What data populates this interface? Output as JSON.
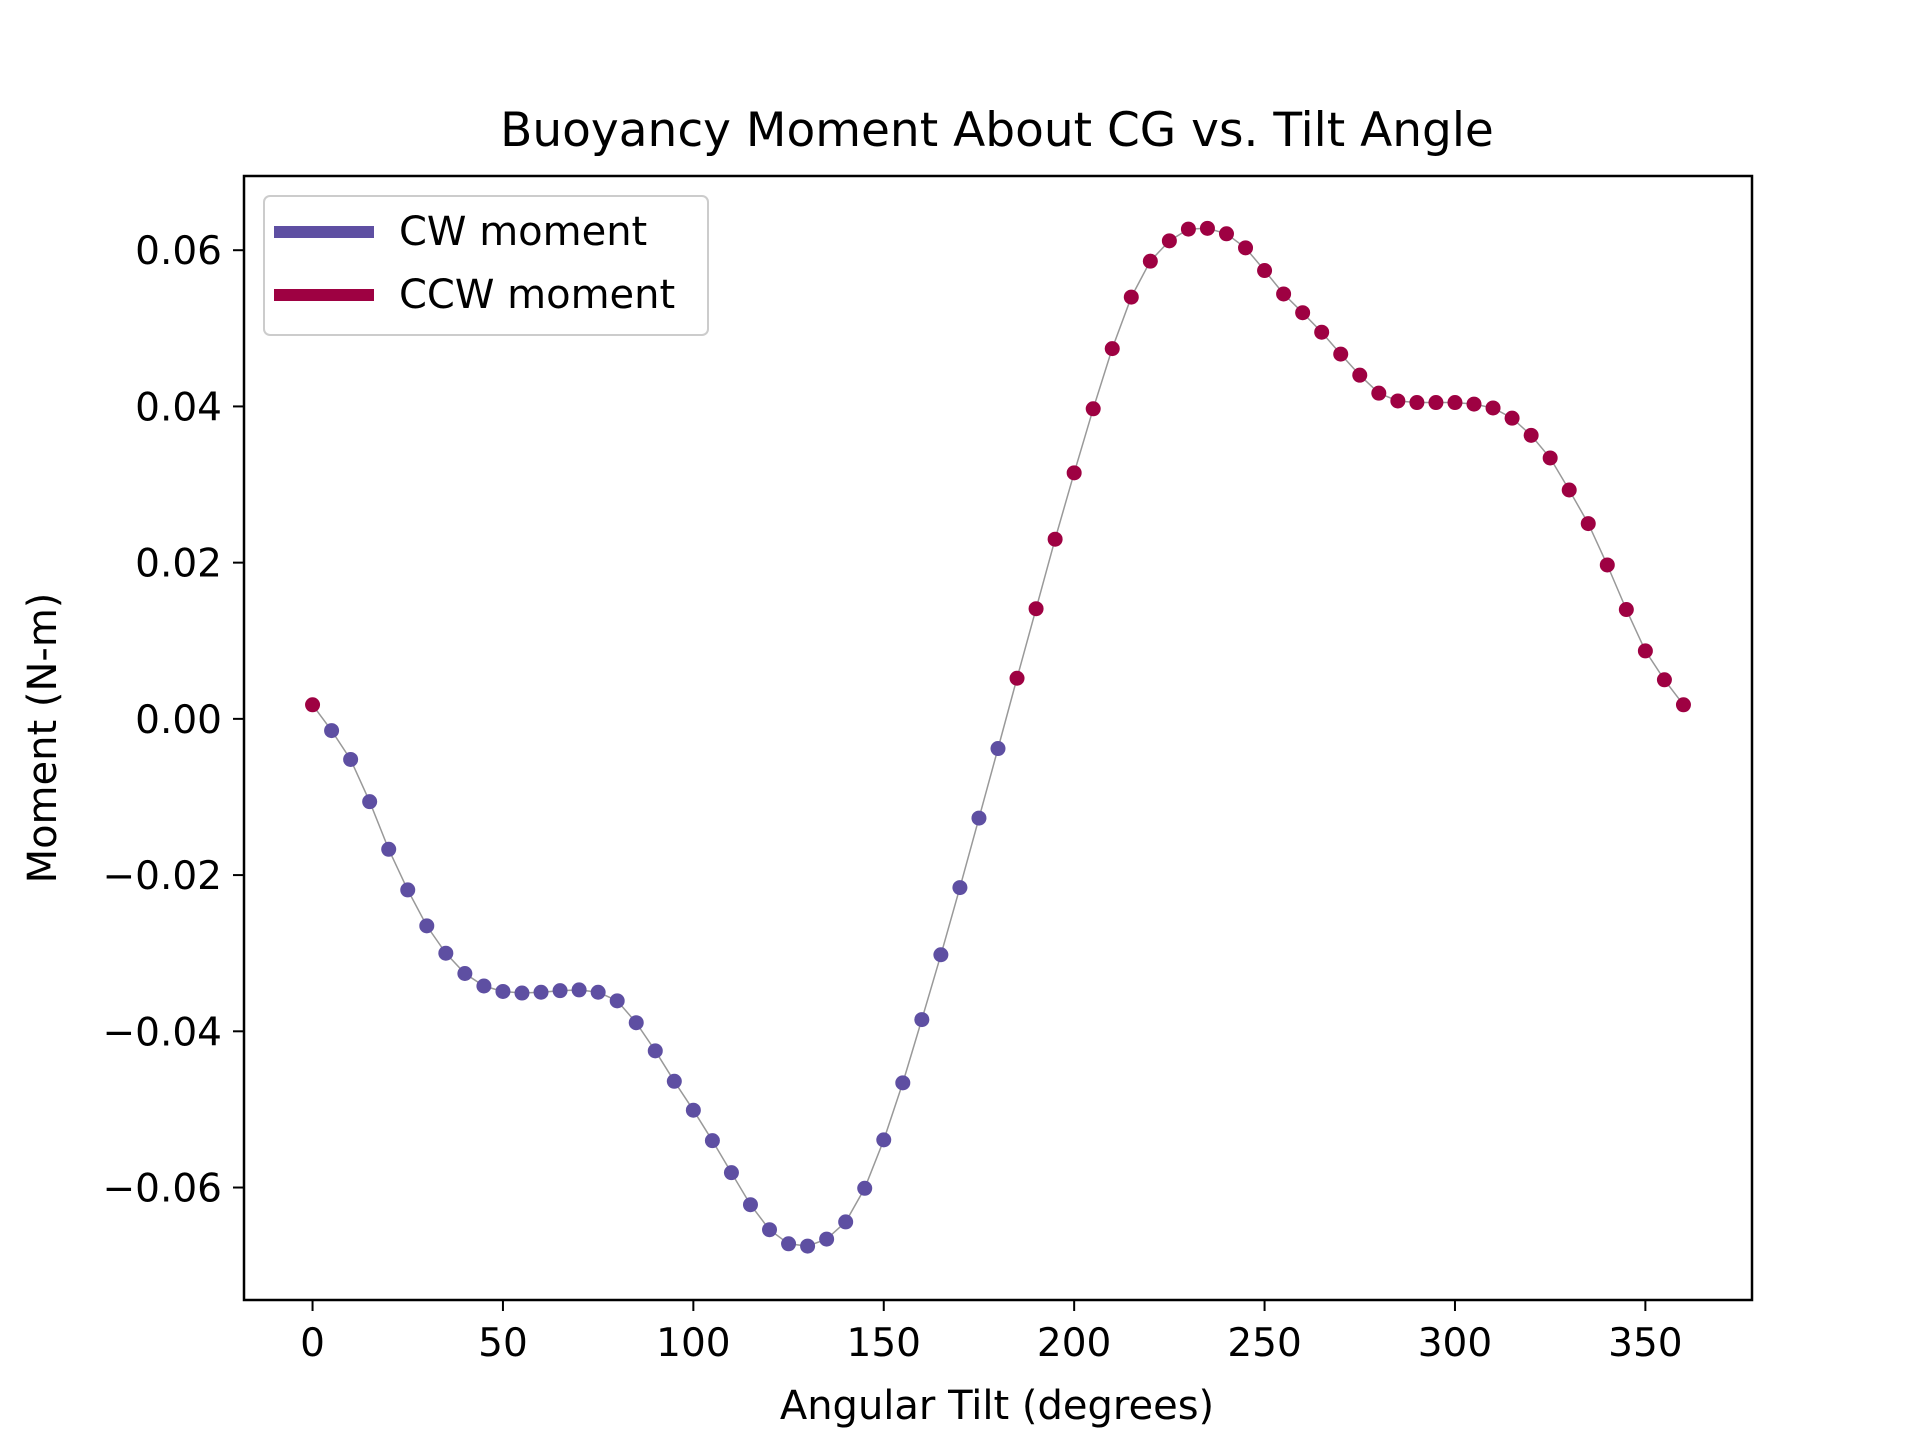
{
  "chart_data": {
    "type": "scatter",
    "title": "Buoyancy Moment About CG vs. Tilt Angle",
    "xlabel": "Angular Tilt (degrees)",
    "ylabel": "Moment (N-m)",
    "xlim": [
      -18,
      378
    ],
    "ylim": [
      -0.0744,
      0.0695
    ],
    "xticks": [
      0,
      50,
      100,
      150,
      200,
      250,
      300,
      350
    ],
    "xtick_labels": [
      "0",
      "50",
      "100",
      "150",
      "200",
      "250",
      "300",
      "350"
    ],
    "yticks": [
      -0.06,
      -0.04,
      -0.02,
      0.0,
      0.02,
      0.04,
      0.06
    ],
    "ytick_labels": [
      "−0.06",
      "−0.04",
      "−0.02",
      "0.00",
      "0.02",
      "0.04",
      "0.06"
    ],
    "grid": false,
    "legend_position": "top-left",
    "connecting_line_color": "#999999",
    "series": [
      {
        "name": "CW moment",
        "color": "#5e4fa2"
      },
      {
        "name": "CCW moment",
        "color": "#9e0142"
      }
    ],
    "x": [
      0,
      5,
      10,
      15,
      20,
      25,
      30,
      35,
      40,
      45,
      50,
      55,
      60,
      65,
      70,
      75,
      80,
      85,
      90,
      95,
      100,
      105,
      110,
      115,
      120,
      125,
      130,
      135,
      140,
      145,
      150,
      155,
      160,
      165,
      170,
      175,
      180,
      185,
      190,
      195,
      200,
      205,
      210,
      215,
      220,
      225,
      230,
      235,
      240,
      245,
      250,
      255,
      260,
      265,
      270,
      275,
      280,
      285,
      290,
      295,
      300,
      305,
      310,
      315,
      320,
      325,
      330,
      335,
      340,
      345,
      350,
      355,
      360
    ],
    "y": [
      0.0018,
      -0.0015,
      -0.0052,
      -0.0106,
      -0.0167,
      -0.0219,
      -0.0265,
      -0.03,
      -0.0326,
      -0.0342,
      -0.0349,
      -0.0351,
      -0.035,
      -0.0348,
      -0.0347,
      -0.035,
      -0.0361,
      -0.0389,
      -0.0425,
      -0.0464,
      -0.0501,
      -0.054,
      -0.0581,
      -0.0622,
      -0.0654,
      -0.0672,
      -0.0675,
      -0.0666,
      -0.0644,
      -0.0601,
      -0.0539,
      -0.0466,
      -0.0385,
      -0.0302,
      -0.0216,
      -0.0127,
      -0.0038,
      0.0052,
      0.0141,
      0.023,
      0.0315,
      0.0397,
      0.0474,
      0.054,
      0.0586,
      0.0612,
      0.0627,
      0.0628,
      0.0621,
      0.0603,
      0.0574,
      0.0544,
      0.052,
      0.0495,
      0.0467,
      0.044,
      0.0417,
      0.0407,
      0.0405,
      0.0405,
      0.0405,
      0.0403,
      0.0398,
      0.0385,
      0.0363,
      0.0334,
      0.0293,
      0.025,
      0.0197,
      0.014,
      0.0087,
      0.005,
      0.0018
    ],
    "series_index": [
      1,
      0,
      0,
      0,
      0,
      0,
      0,
      0,
      0,
      0,
      0,
      0,
      0,
      0,
      0,
      0,
      0,
      0,
      0,
      0,
      0,
      0,
      0,
      0,
      0,
      0,
      0,
      0,
      0,
      0,
      0,
      0,
      0,
      0,
      0,
      0,
      0,
      1,
      1,
      1,
      1,
      1,
      1,
      1,
      1,
      1,
      1,
      1,
      1,
      1,
      1,
      1,
      1,
      1,
      1,
      1,
      1,
      1,
      1,
      1,
      1,
      1,
      1,
      1,
      1,
      1,
      1,
      1,
      1,
      1,
      1,
      1,
      1
    ]
  }
}
